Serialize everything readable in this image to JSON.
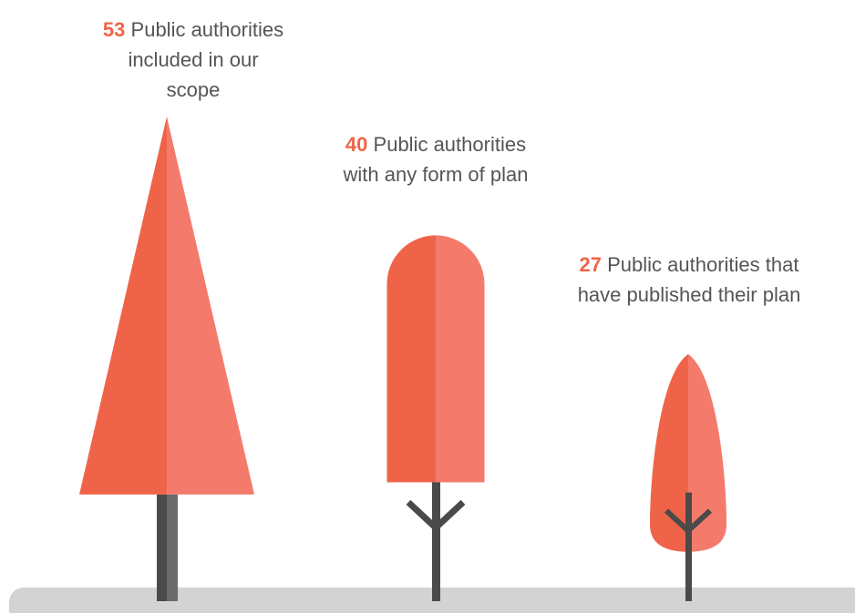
{
  "items": [
    {
      "value": 53,
      "label": "Public authorities included in our scope"
    },
    {
      "value": 40,
      "label": "Public authorities with any form of plan"
    },
    {
      "value": 27,
      "label": "Public authorities that have published their plan"
    }
  ]
}
